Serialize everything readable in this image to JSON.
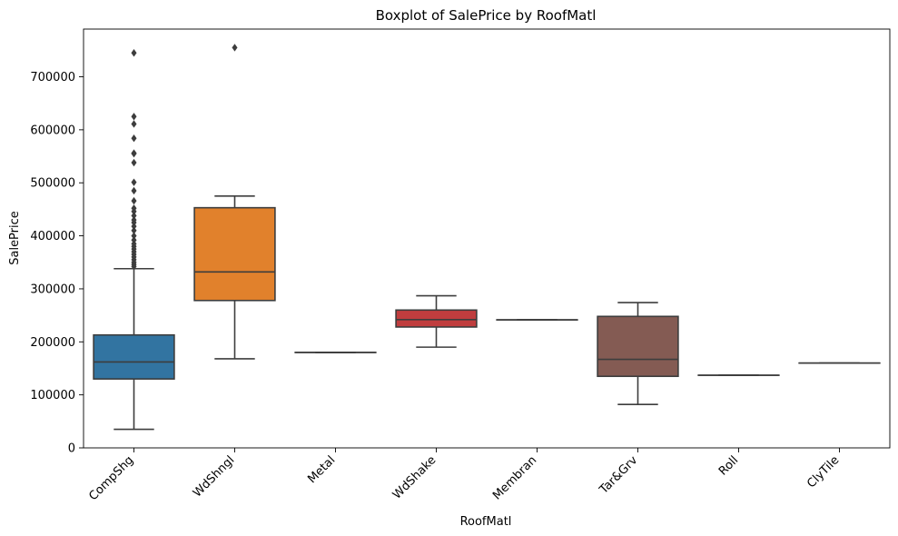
{
  "chart_data": {
    "type": "boxplot",
    "title": "Boxplot of SalePrice by RoofMatl",
    "xlabel": "RoofMatl",
    "ylabel": "SalePrice",
    "ylim": [
      0,
      790000
    ],
    "yticks": [
      0,
      100000,
      200000,
      300000,
      400000,
      500000,
      600000,
      700000
    ],
    "legend": "none",
    "grid": false,
    "categories": [
      "CompShg",
      "WdShngl",
      "Metal",
      "WdShake",
      "Membran",
      "Tar&Grv",
      "Roll",
      "ClyTile"
    ],
    "boxes": [
      {
        "category": "CompShg",
        "color": "#3274a1",
        "whisker_low": 35000,
        "q1": 130000,
        "median": 162000,
        "q3": 213000,
        "whisker_high": 338000,
        "outliers": [
          342000,
          346000,
          350000,
          355000,
          360000,
          365000,
          370000,
          375000,
          380000,
          385000,
          392000,
          400000,
          410000,
          418000,
          425000,
          430000,
          438000,
          446000,
          452000,
          466000,
          485000,
          501000,
          538000,
          555000,
          556000,
          584000,
          611000,
          625000,
          745000
        ]
      },
      {
        "category": "WdShngl",
        "color": "#e1812c",
        "whisker_low": 168000,
        "q1": 278000,
        "median": 332000,
        "q3": 453000,
        "whisker_high": 475000,
        "outliers": [
          755000
        ]
      },
      {
        "category": "Metal",
        "color": "#3a923a",
        "whisker_low": 180000,
        "q1": 180000,
        "median": 180000,
        "q3": 180000,
        "whisker_high": 180000,
        "outliers": []
      },
      {
        "category": "WdShake",
        "color": "#c03d3e",
        "whisker_low": 190000,
        "q1": 228000,
        "median": 242000,
        "q3": 260000,
        "whisker_high": 287000,
        "outliers": []
      },
      {
        "category": "Membran",
        "color": "#9372b2",
        "whisker_low": 241500,
        "q1": 241500,
        "median": 241500,
        "q3": 241500,
        "whisker_high": 241500,
        "outliers": []
      },
      {
        "category": "Tar&Grv",
        "color": "#845b53",
        "whisker_low": 82000,
        "q1": 135000,
        "median": 167000,
        "q3": 248000,
        "whisker_high": 274000,
        "outliers": []
      },
      {
        "category": "Roll",
        "color": "#d684bd",
        "whisker_low": 137000,
        "q1": 137000,
        "median": 137000,
        "q3": 137000,
        "whisker_high": 137000,
        "outliers": []
      },
      {
        "category": "ClyTile",
        "color": "#7f7f7f",
        "whisker_low": 160000,
        "q1": 160000,
        "median": 160000,
        "q3": 160000,
        "whisker_high": 160000,
        "outliers": []
      }
    ]
  }
}
